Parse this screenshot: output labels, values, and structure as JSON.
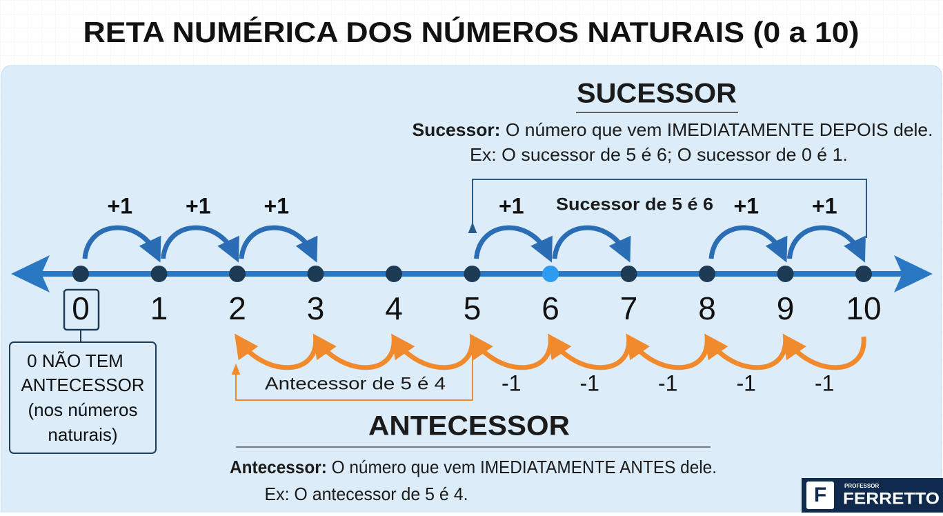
{
  "title": "RETA NUMÉRICA DOS NÚMEROS NATURAIS (0 a 10)",
  "successor": {
    "heading": "SUCESSOR",
    "term": "Sucessor:",
    "definition": "O número que vem IMEDIATAMENTE DEPOIS dele.",
    "example": "Ex: O sucessor de 5 é 6; O sucessor de 0 é 1.",
    "note": "Sucessor de 5 é 6",
    "step_labels": [
      "+1",
      "+1",
      "+1",
      "+1",
      "+1",
      "+1"
    ]
  },
  "number_line": {
    "points": [
      "0",
      "1",
      "2",
      "3",
      "4",
      "5",
      "6",
      "7",
      "8",
      "9",
      "10"
    ]
  },
  "zero_note": {
    "lines": [
      "0 NÃO TEM",
      "ANTECESSOR",
      "(nos números",
      "naturais)"
    ]
  },
  "predecessor": {
    "heading": "ANTECESSOR",
    "term": "Antecessor:",
    "definition": "O número que vem IMEDIATAMENTE ANTES dele.",
    "example": "Ex: O antecessor de 5 é 4.",
    "note": "Antecessor de 5 é 4",
    "step_labels": [
      "-1",
      "-1",
      "-1",
      "-1",
      "-1"
    ]
  },
  "logo": {
    "letter": "F",
    "small": "PROFESSOR",
    "name": "FERRETTO"
  }
}
